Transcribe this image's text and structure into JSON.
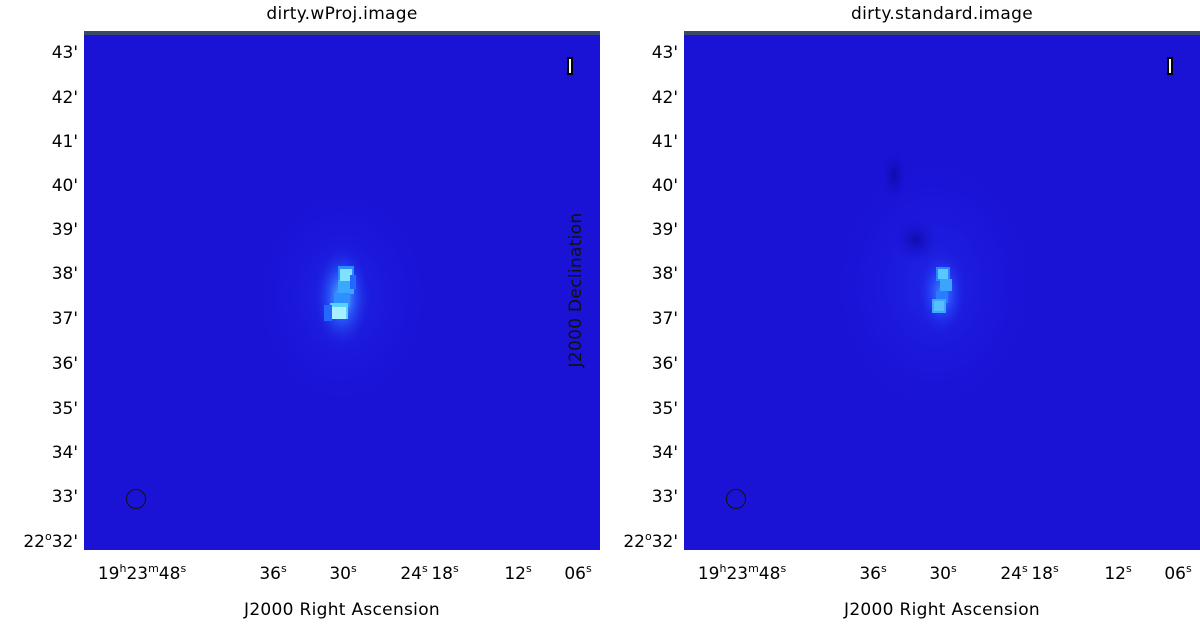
{
  "panels": [
    {
      "title": "dirty.wProj.image",
      "xlabel": "J2000 Right Ascension",
      "ylabel": ""
    },
    {
      "title": "dirty.standard.image",
      "xlabel": "J2000 Right Ascension",
      "ylabel": "J2000 Declination"
    }
  ],
  "dec_ticks": [
    "43'",
    "42'",
    "41'",
    "40'",
    "39'",
    "38'",
    "37'",
    "36'",
    "35'",
    "34'",
    "33'",
    "22°32'"
  ],
  "ra_ticks": [
    "19h23m48s",
    "36s",
    "30s",
    "24s",
    "18s",
    "12s",
    "06s"
  ],
  "colors": {
    "background": "#1a10d6",
    "source_core": "#a8f0ff",
    "frame_top": "#3a4a66"
  }
}
